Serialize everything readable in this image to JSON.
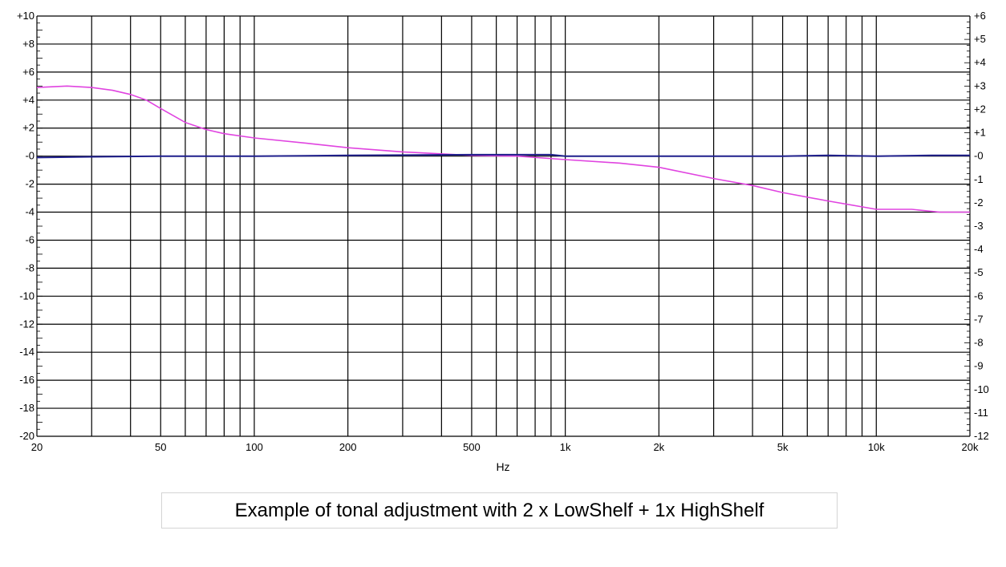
{
  "chart_data": {
    "type": "line",
    "xlabel": "Hz",
    "xscale": "log",
    "xlim": [
      20,
      20000
    ],
    "x_ticks": [
      {
        "value": 20,
        "label": "20"
      },
      {
        "value": 50,
        "label": "50"
      },
      {
        "value": 100,
        "label": "100"
      },
      {
        "value": 200,
        "label": "200"
      },
      {
        "value": 500,
        "label": "500"
      },
      {
        "value": 1000,
        "label": "1k"
      },
      {
        "value": 2000,
        "label": "2k"
      },
      {
        "value": 5000,
        "label": "5k"
      },
      {
        "value": 10000,
        "label": "10k"
      },
      {
        "value": 20000,
        "label": "20k"
      }
    ],
    "ylim_left": [
      -20,
      10
    ],
    "y_ticks_left": [
      "+10",
      "+8",
      "+6",
      "+4",
      "+2",
      "-0",
      "-2",
      "-4",
      "-6",
      "-8",
      "-10",
      "-12",
      "-14",
      "-16",
      "-18",
      "-20"
    ],
    "ylim_right": [
      -12,
      6
    ],
    "y_ticks_right": [
      "+6",
      "+5",
      "+4",
      "+3",
      "+2",
      "+1",
      "-0",
      "-1",
      "-2",
      "-3",
      "-4",
      "-5",
      "-6",
      "-7",
      "-8",
      "-9",
      "-10",
      "-11",
      "-12"
    ],
    "grid": true,
    "series": [
      {
        "color": "#e044e0",
        "axis": "left",
        "x": [
          20,
          25,
          30,
          35,
          40,
          45,
          50,
          60,
          70,
          80,
          100,
          150,
          200,
          300,
          500,
          700,
          1000,
          1500,
          2000,
          3000,
          4000,
          5000,
          7000,
          10000,
          13000,
          16000,
          20000
        ],
        "y": [
          4.9,
          5.0,
          4.9,
          4.7,
          4.4,
          4.0,
          3.4,
          2.4,
          1.9,
          1.6,
          1.3,
          0.9,
          0.6,
          0.3,
          0.05,
          0.0,
          -0.25,
          -0.5,
          -0.8,
          -1.6,
          -2.1,
          -2.6,
          -3.2,
          -3.8,
          -3.8,
          -4.0,
          -4.0
        ]
      },
      {
        "color": "#1f1f8c",
        "axis": "left",
        "x": [
          20,
          30,
          50,
          100,
          200,
          500,
          900,
          1000,
          2000,
          5000,
          7000,
          10000,
          15000,
          20000
        ],
        "y": [
          -0.1,
          -0.05,
          0.0,
          0.0,
          0.05,
          0.1,
          0.1,
          0.0,
          0.0,
          0.0,
          0.05,
          0.0,
          0.05,
          0.05
        ]
      }
    ]
  },
  "caption": "Example of tonal adjustment with 2 x LowShelf + 1x HighShelf"
}
